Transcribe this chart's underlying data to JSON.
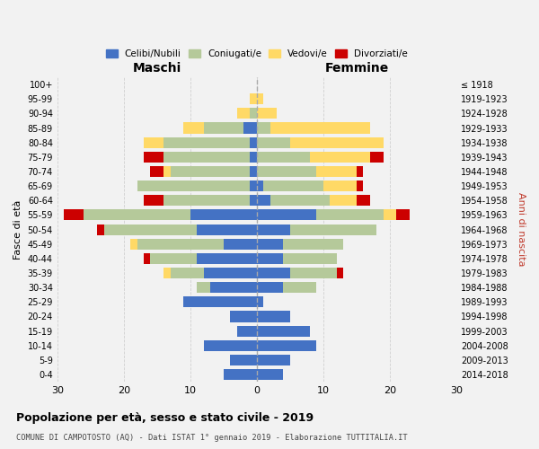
{
  "age_groups": [
    "100+",
    "95-99",
    "90-94",
    "85-89",
    "80-84",
    "75-79",
    "70-74",
    "65-69",
    "60-64",
    "55-59",
    "50-54",
    "45-49",
    "40-44",
    "35-39",
    "30-34",
    "25-29",
    "20-24",
    "15-19",
    "10-14",
    "5-9",
    "0-4"
  ],
  "birth_years": [
    "≤ 1918",
    "1919-1923",
    "1924-1928",
    "1929-1933",
    "1934-1938",
    "1939-1943",
    "1944-1948",
    "1949-1953",
    "1954-1958",
    "1959-1963",
    "1964-1968",
    "1969-1973",
    "1974-1978",
    "1979-1983",
    "1984-1988",
    "1989-1993",
    "1994-1998",
    "1999-2003",
    "2004-2008",
    "2009-2013",
    "2014-2018"
  ],
  "maschi": {
    "celibi": [
      0,
      0,
      0,
      2,
      1,
      1,
      1,
      1,
      1,
      10,
      9,
      5,
      9,
      8,
      7,
      11,
      4,
      3,
      8,
      4,
      5
    ],
    "coniugati": [
      0,
      0,
      1,
      6,
      13,
      13,
      12,
      17,
      13,
      16,
      14,
      13,
      7,
      5,
      2,
      0,
      0,
      0,
      0,
      0,
      0
    ],
    "vedovi": [
      0,
      1,
      2,
      3,
      3,
      0,
      1,
      0,
      0,
      0,
      0,
      1,
      0,
      1,
      0,
      0,
      0,
      0,
      0,
      0,
      0
    ],
    "divorziati": [
      0,
      0,
      0,
      0,
      0,
      3,
      2,
      0,
      3,
      3,
      1,
      0,
      1,
      0,
      0,
      0,
      0,
      0,
      0,
      0,
      0
    ]
  },
  "femmine": {
    "nubili": [
      0,
      0,
      0,
      0,
      0,
      0,
      0,
      1,
      2,
      9,
      5,
      4,
      4,
      5,
      4,
      1,
      5,
      8,
      9,
      5,
      4
    ],
    "coniugate": [
      0,
      0,
      0,
      2,
      5,
      8,
      9,
      9,
      9,
      10,
      13,
      9,
      8,
      7,
      5,
      0,
      0,
      0,
      0,
      0,
      0
    ],
    "vedove": [
      0,
      1,
      3,
      15,
      14,
      9,
      6,
      5,
      4,
      2,
      0,
      0,
      0,
      0,
      0,
      0,
      0,
      0,
      0,
      0,
      0
    ],
    "divorziate": [
      0,
      0,
      0,
      0,
      0,
      2,
      1,
      1,
      2,
      2,
      0,
      0,
      0,
      1,
      0,
      0,
      0,
      0,
      0,
      0,
      0
    ]
  },
  "colors": {
    "celibi": "#4472c4",
    "coniugati": "#b5c99a",
    "vedovi": "#ffd966",
    "divorziati": "#cc0000"
  },
  "xlim": 30,
  "title": "Popolazione per età, sesso e stato civile - 2019",
  "subtitle": "COMUNE DI CAMPOTOSTO (AQ) - Dati ISTAT 1° gennaio 2019 - Elaborazione TUTTITALIA.IT",
  "ylabel": "Fasce di età",
  "right_label": "Anni di nascita",
  "bg_color": "#f2f2f2",
  "grid_color": "#cccccc"
}
